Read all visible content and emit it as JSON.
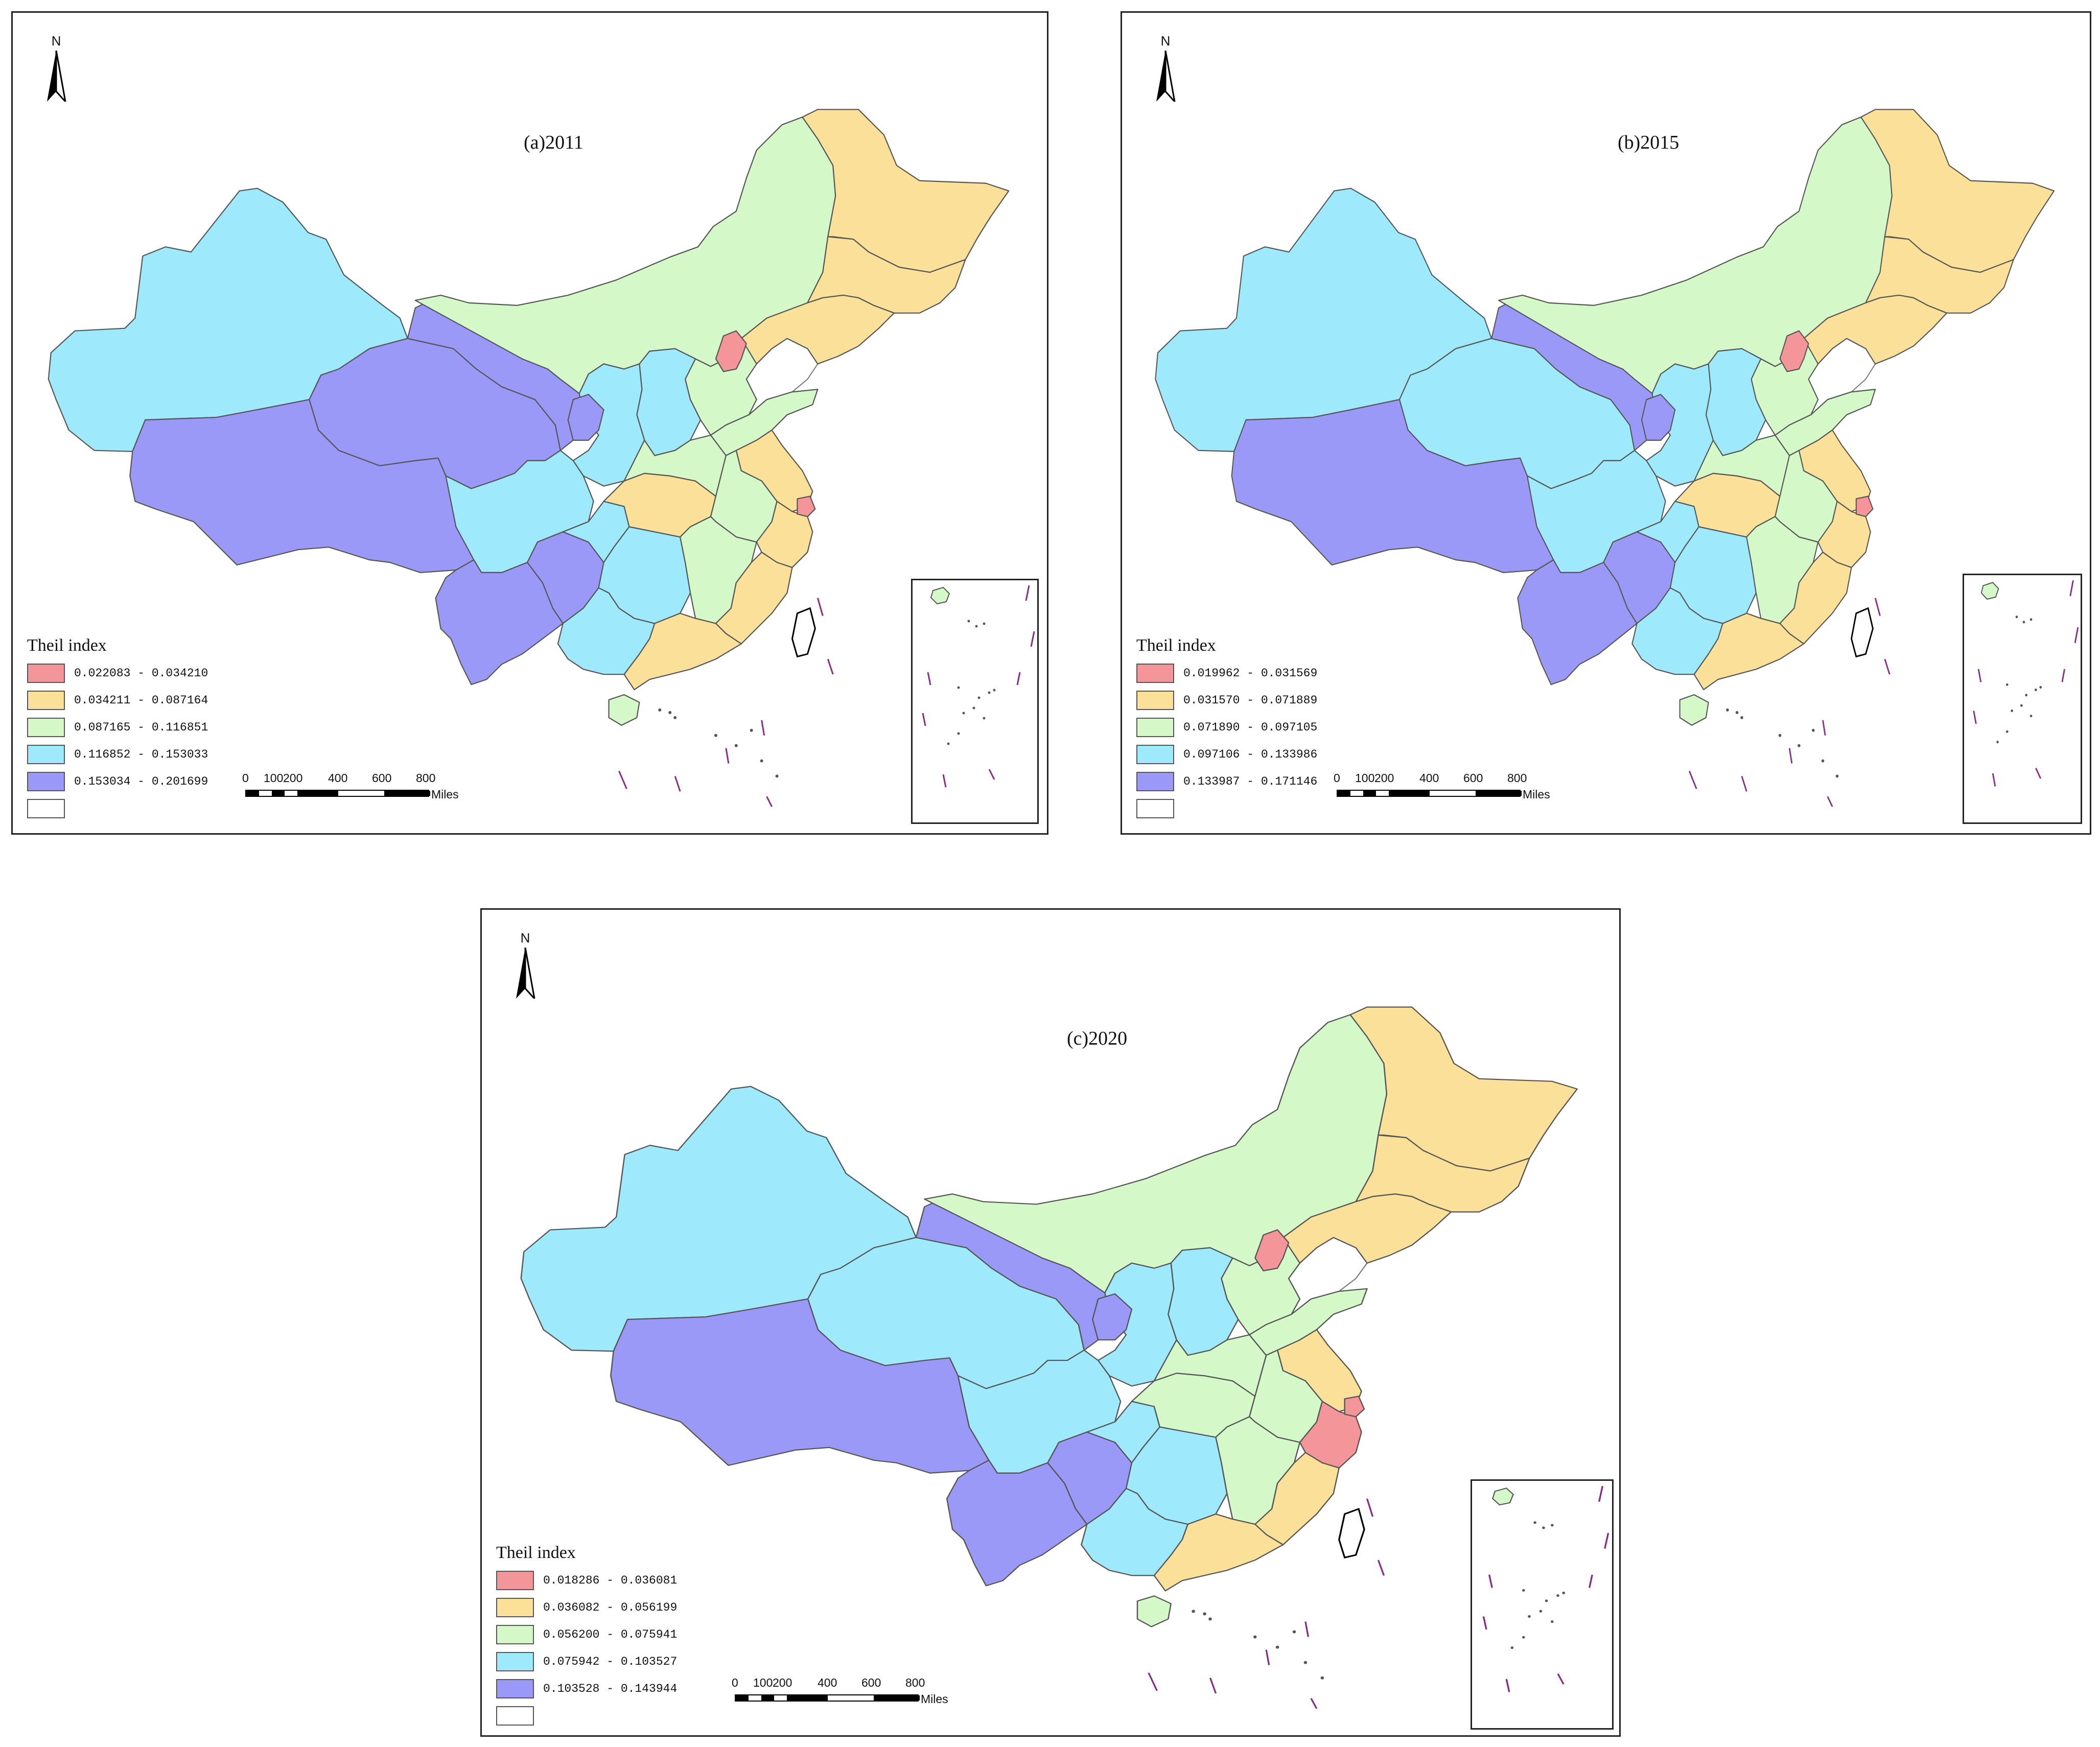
{
  "map_meta": {
    "north_label": "N",
    "unit_label": "Miles",
    "scale_ticks": [
      "0",
      "100",
      "200",
      "400",
      "600",
      "800"
    ]
  },
  "panels": [
    {
      "id": "a",
      "title": "(a)2011",
      "legend_title": "Theil index",
      "classes": [
        {
          "range": "0.022083 - 0.034210",
          "color": "#f4959a"
        },
        {
          "range": "0.034211 - 0.087164",
          "color": "#fbe09a"
        },
        {
          "range": "0.087165 - 0.116851",
          "color": "#d4f8c8"
        },
        {
          "range": "0.116852 - 0.153033",
          "color": "#9ee9fb"
        },
        {
          "range": "0.153034 - 0.201699",
          "color": "#9b99f8"
        }
      ],
      "region_classes": {
        "xinjiang": 3,
        "tibet": 4,
        "qinghai": 4,
        "gansu": 4,
        "inner-mongolia": 2,
        "heilongjiang": 1,
        "jilin": 1,
        "liaoning": 1,
        "beijing": 0,
        "hebei": 2,
        "shanxi": 3,
        "shaanxi": 3,
        "ningxia": 4,
        "sichuan": 3,
        "yunnan": 4,
        "guizhou": 4,
        "chongqing": 3,
        "hunan": 3,
        "hubei": 1,
        "henan": 2,
        "shandong": 2,
        "jiangsu": 1,
        "anhui": 2,
        "zhejiang": 1,
        "shanghai": 0,
        "jiangxi": 2,
        "fujian": 1,
        "guangdong": 1,
        "guangxi": 3,
        "hainan": 2
      }
    },
    {
      "id": "b",
      "title": "(b)2015",
      "legend_title": "Theil index",
      "classes": [
        {
          "range": "0.019962 - 0.031569",
          "color": "#f4959a"
        },
        {
          "range": "0.031570 - 0.071889",
          "color": "#fbe09a"
        },
        {
          "range": "0.071890 - 0.097105",
          "color": "#d4f8c8"
        },
        {
          "range": "0.097106 - 0.133986",
          "color": "#9ee9fb"
        },
        {
          "range": "0.133987 - 0.171146",
          "color": "#9b99f8"
        }
      ],
      "region_classes": {
        "xinjiang": 3,
        "tibet": 4,
        "qinghai": 3,
        "gansu": 4,
        "inner-mongolia": 2,
        "heilongjiang": 1,
        "jilin": 1,
        "liaoning": 1,
        "beijing": 0,
        "hebei": 2,
        "shanxi": 3,
        "shaanxi": 3,
        "ningxia": 4,
        "sichuan": 3,
        "yunnan": 4,
        "guizhou": 4,
        "chongqing": 3,
        "hunan": 3,
        "hubei": 1,
        "henan": 2,
        "shandong": 2,
        "jiangsu": 1,
        "anhui": 2,
        "zhejiang": 1,
        "shanghai": 0,
        "jiangxi": 2,
        "fujian": 1,
        "guangdong": 1,
        "guangxi": 3,
        "hainan": 2
      }
    },
    {
      "id": "c",
      "title": "(c)2020",
      "legend_title": "Theil index",
      "classes": [
        {
          "range": "0.018286 - 0.036081",
          "color": "#f4959a"
        },
        {
          "range": "0.036082 - 0.056199",
          "color": "#fbe09a"
        },
        {
          "range": "0.056200 - 0.075941",
          "color": "#d4f8c8"
        },
        {
          "range": "0.075942 - 0.103527",
          "color": "#9ee9fb"
        },
        {
          "range": "0.103528 - 0.143944",
          "color": "#9b99f8"
        }
      ],
      "region_classes": {
        "xinjiang": 3,
        "tibet": 4,
        "qinghai": 3,
        "gansu": 4,
        "inner-mongolia": 2,
        "heilongjiang": 1,
        "jilin": 1,
        "liaoning": 1,
        "beijing": 0,
        "hebei": 2,
        "shanxi": 3,
        "shaanxi": 3,
        "ningxia": 4,
        "sichuan": 3,
        "yunnan": 4,
        "guizhou": 4,
        "chongqing": 3,
        "hunan": 3,
        "hubei": 2,
        "henan": 2,
        "shandong": 2,
        "jiangsu": 1,
        "anhui": 2,
        "zhejiang": 0,
        "shanghai": 0,
        "jiangxi": 2,
        "fujian": 1,
        "guangdong": 1,
        "guangxi": 3,
        "hainan": 2
      }
    }
  ]
}
